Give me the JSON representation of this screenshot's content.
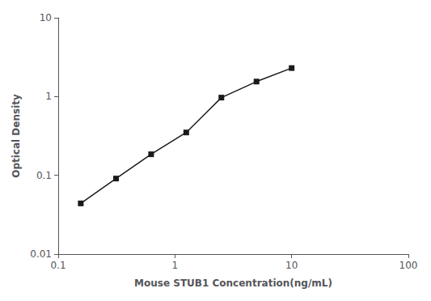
{
  "chart_data": {
    "type": "line",
    "x": [
      0.156,
      0.313,
      0.625,
      1.25,
      2.5,
      5.0,
      10.0
    ],
    "values": [
      0.044,
      0.091,
      0.185,
      0.35,
      0.97,
      1.55,
      2.3
    ],
    "xlabel": "Mouse STUB1 Concentration(ng/mL)",
    "ylabel": "Optical Density",
    "xlim": [
      0.1,
      100
    ],
    "ylim": [
      0.01,
      10
    ],
    "xticks": [
      0.1,
      1,
      10,
      100
    ],
    "yticks": [
      0.01,
      0.1,
      1,
      10
    ],
    "log": true,
    "grid": false,
    "color": "#1a1a1a",
    "marker": "square",
    "line_style": "solid"
  }
}
